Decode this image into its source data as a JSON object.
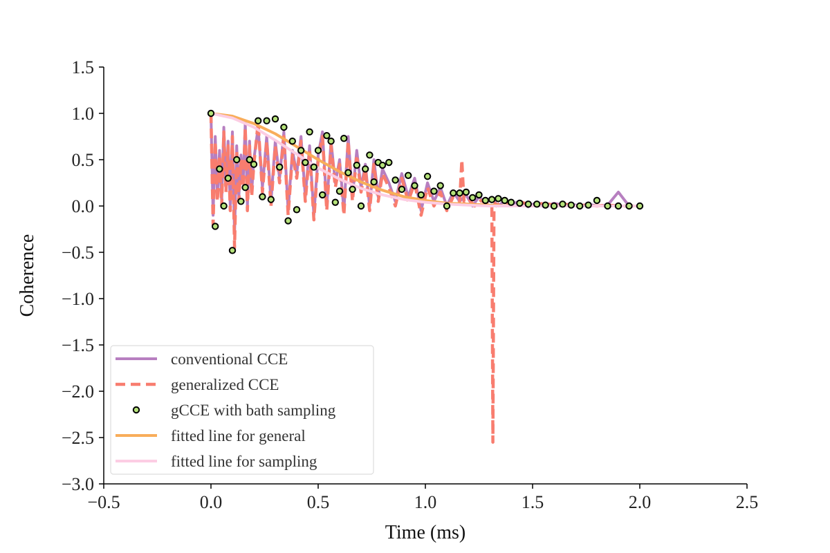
{
  "chart_data": {
    "type": "line",
    "title": "",
    "xlabel": "Time (ms)",
    "ylabel": "Coherence",
    "xlim": [
      -0.5,
      2.5
    ],
    "ylim": [
      -3.0,
      1.5
    ],
    "xticks": [
      -0.5,
      0.0,
      0.5,
      1.0,
      1.5,
      2.0,
      2.5
    ],
    "yticks": [
      -3.0,
      -2.5,
      -2.0,
      -1.5,
      -1.0,
      -0.5,
      0.0,
      0.5,
      1.0,
      1.5
    ],
    "xtick_labels": [
      "−0.5",
      "0.0",
      "0.5",
      "1.0",
      "1.5",
      "2.0",
      "2.5"
    ],
    "ytick_labels": [
      "−3.0",
      "−2.5",
      "−2.0",
      "−1.5",
      "−1.0",
      "−0.5",
      "0.0",
      "0.5",
      "1.0",
      "1.5"
    ],
    "grid": false,
    "legend_position": "lower-left",
    "colors": {
      "conventional": "#b77fc0",
      "generalized": "#f87d6f",
      "sampling_fill": "#b5e27a",
      "sampling_edge": "#000000",
      "fit_general": "#f8ad5a",
      "fit_sampling": "#fccde3"
    },
    "series": [
      {
        "name": "conventional CCE",
        "style": "solid",
        "x": [
          0.0,
          0.01,
          0.02,
          0.03,
          0.04,
          0.05,
          0.06,
          0.07,
          0.08,
          0.09,
          0.1,
          0.11,
          0.12,
          0.13,
          0.14,
          0.15,
          0.16,
          0.17,
          0.18,
          0.19,
          0.2,
          0.22,
          0.24,
          0.26,
          0.28,
          0.3,
          0.32,
          0.34,
          0.36,
          0.38,
          0.4,
          0.42,
          0.44,
          0.46,
          0.48,
          0.5,
          0.52,
          0.54,
          0.56,
          0.58,
          0.6,
          0.62,
          0.64,
          0.66,
          0.68,
          0.7,
          0.72,
          0.74,
          0.76,
          0.78,
          0.8,
          0.83,
          0.86,
          0.89,
          0.92,
          0.95,
          0.98,
          1.01,
          1.04,
          1.07,
          1.1,
          1.13,
          1.16,
          1.19,
          1.22,
          1.25,
          1.28,
          1.31,
          1.34,
          1.37,
          1.4,
          1.44,
          1.48,
          1.52,
          1.56,
          1.6,
          1.64,
          1.68,
          1.72,
          1.76,
          1.8,
          1.85,
          1.9,
          1.95,
          2.0
        ],
        "y": [
          1.0,
          -0.1,
          0.75,
          0.1,
          0.6,
          0.05,
          0.85,
          0.2,
          0.7,
          0.0,
          0.8,
          -0.3,
          0.65,
          0.1,
          0.55,
          0.25,
          0.9,
          0.0,
          0.7,
          0.15,
          0.5,
          0.85,
          0.2,
          0.75,
          0.05,
          0.7,
          0.3,
          0.8,
          -0.05,
          0.6,
          0.35,
          0.75,
          0.1,
          0.65,
          -0.1,
          0.55,
          0.8,
          0.0,
          0.7,
          0.25,
          0.5,
          -0.05,
          0.75,
          0.1,
          0.6,
          0.2,
          0.45,
          0.0,
          0.5,
          0.1,
          0.4,
          0.25,
          0.05,
          0.35,
          0.1,
          0.3,
          -0.05,
          0.25,
          0.05,
          0.2,
          0.0,
          0.15,
          0.05,
          0.12,
          0.0,
          0.1,
          0.03,
          0.08,
          0.0,
          0.06,
          0.02,
          0.05,
          -0.01,
          0.04,
          0.0,
          0.03,
          0.01,
          0.02,
          0.0,
          0.02,
          0.0,
          0.01,
          0.15,
          0.0,
          0.0
        ]
      },
      {
        "name": "generalized CCE",
        "style": "dashed",
        "x": [
          0.0,
          0.01,
          0.02,
          0.03,
          0.04,
          0.05,
          0.06,
          0.07,
          0.08,
          0.09,
          0.1,
          0.11,
          0.12,
          0.13,
          0.14,
          0.15,
          0.16,
          0.17,
          0.18,
          0.19,
          0.2,
          0.22,
          0.24,
          0.26,
          0.28,
          0.3,
          0.32,
          0.34,
          0.36,
          0.38,
          0.4,
          0.42,
          0.44,
          0.46,
          0.48,
          0.5,
          0.52,
          0.54,
          0.56,
          0.58,
          0.6,
          0.62,
          0.64,
          0.66,
          0.68,
          0.7,
          0.72,
          0.74,
          0.76,
          0.78,
          0.8,
          0.83,
          0.86,
          0.89,
          0.92,
          0.95,
          0.98,
          1.01,
          1.04,
          1.07,
          1.1,
          1.13,
          1.16,
          1.17,
          1.18,
          1.2,
          1.23,
          1.26,
          1.29,
          1.31,
          1.315,
          1.32,
          1.325,
          1.33,
          1.36,
          1.4,
          1.45,
          1.5,
          1.55,
          1.6,
          1.65,
          1.7,
          1.75,
          1.8,
          1.85,
          1.9,
          1.95,
          2.0
        ],
        "y": [
          1.0,
          -0.2,
          0.7,
          0.05,
          0.55,
          0.0,
          0.8,
          0.15,
          0.65,
          -0.05,
          0.75,
          -0.45,
          0.6,
          0.05,
          0.5,
          0.2,
          0.85,
          -0.05,
          0.65,
          0.1,
          0.45,
          0.9,
          0.15,
          0.7,
          0.0,
          0.65,
          0.25,
          0.75,
          -0.1,
          0.55,
          0.3,
          0.7,
          0.05,
          0.6,
          -0.15,
          0.5,
          0.75,
          -0.05,
          0.65,
          0.2,
          0.45,
          -0.1,
          0.7,
          0.05,
          0.55,
          0.15,
          0.4,
          -0.05,
          0.45,
          0.05,
          0.35,
          0.2,
          0.0,
          0.3,
          0.05,
          0.25,
          -0.1,
          0.2,
          0.0,
          0.15,
          -0.05,
          0.1,
          0.05,
          0.5,
          0.05,
          0.08,
          0.0,
          0.06,
          0.02,
          0.0,
          -2.55,
          0.0,
          0.03,
          0.0,
          0.05,
          0.02,
          0.04,
          0.0,
          0.03,
          0.01,
          0.02,
          0.0,
          0.01,
          0.0,
          0.01,
          0.0,
          0.0,
          0.0
        ]
      },
      {
        "name": "gCCE with bath sampling",
        "style": "markers",
        "x": [
          0.0,
          0.02,
          0.04,
          0.06,
          0.08,
          0.1,
          0.12,
          0.14,
          0.16,
          0.18,
          0.2,
          0.22,
          0.24,
          0.26,
          0.28,
          0.3,
          0.32,
          0.34,
          0.36,
          0.38,
          0.4,
          0.42,
          0.44,
          0.46,
          0.48,
          0.5,
          0.52,
          0.54,
          0.56,
          0.58,
          0.6,
          0.62,
          0.64,
          0.66,
          0.68,
          0.7,
          0.72,
          0.74,
          0.76,
          0.78,
          0.8,
          0.83,
          0.86,
          0.89,
          0.92,
          0.95,
          0.98,
          1.01,
          1.04,
          1.07,
          1.1,
          1.13,
          1.16,
          1.19,
          1.22,
          1.25,
          1.28,
          1.31,
          1.34,
          1.37,
          1.4,
          1.44,
          1.48,
          1.52,
          1.56,
          1.6,
          1.64,
          1.68,
          1.72,
          1.76,
          1.8,
          1.85,
          1.9,
          1.95,
          2.0
        ],
        "y": [
          1.0,
          -0.22,
          0.4,
          0.0,
          0.3,
          -0.48,
          0.5,
          0.05,
          0.2,
          0.5,
          0.45,
          0.92,
          0.1,
          0.92,
          0.07,
          0.94,
          0.42,
          0.85,
          -0.16,
          0.7,
          -0.04,
          0.6,
          0.47,
          0.8,
          0.42,
          0.6,
          0.12,
          0.76,
          0.7,
          0.04,
          0.16,
          0.73,
          0.36,
          0.18,
          0.44,
          0.0,
          0.4,
          0.55,
          0.26,
          0.47,
          0.44,
          0.47,
          0.28,
          0.18,
          0.33,
          0.22,
          0.12,
          0.32,
          0.16,
          0.22,
          0.0,
          0.14,
          0.14,
          0.15,
          0.09,
          0.12,
          0.06,
          0.07,
          0.08,
          0.06,
          0.04,
          0.03,
          0.02,
          0.02,
          0.01,
          0.0,
          0.02,
          0.01,
          0.0,
          0.01,
          0.06,
          0.0,
          0.0,
          0.0,
          0.0
        ]
      },
      {
        "name": "fitted line for general",
        "style": "solid",
        "x": [
          0.0,
          0.1,
          0.2,
          0.3,
          0.4,
          0.5,
          0.6,
          0.7,
          0.8,
          0.9,
          1.0,
          1.1,
          1.2,
          1.3,
          1.4,
          1.5,
          1.6,
          1.7,
          1.8,
          1.9,
          2.0
        ],
        "y": [
          1.0,
          0.97,
          0.89,
          0.78,
          0.64,
          0.5,
          0.37,
          0.26,
          0.17,
          0.1,
          0.06,
          0.03,
          0.02,
          0.01,
          0.0,
          0.0,
          0.0,
          0.0,
          0.0,
          0.0,
          0.0
        ]
      },
      {
        "name": "fitted line for sampling",
        "style": "solid",
        "x": [
          0.0,
          0.1,
          0.2,
          0.3,
          0.4,
          0.5,
          0.6,
          0.7,
          0.8,
          0.9,
          1.0,
          1.1,
          1.2,
          1.3,
          1.4,
          1.5,
          1.6,
          1.7,
          1.8,
          1.9,
          2.0
        ],
        "y": [
          1.0,
          0.95,
          0.85,
          0.71,
          0.56,
          0.41,
          0.29,
          0.19,
          0.12,
          0.07,
          0.04,
          0.02,
          0.01,
          0.0,
          0.0,
          0.0,
          0.0,
          0.0,
          0.0,
          0.0,
          0.0
        ]
      }
    ]
  }
}
